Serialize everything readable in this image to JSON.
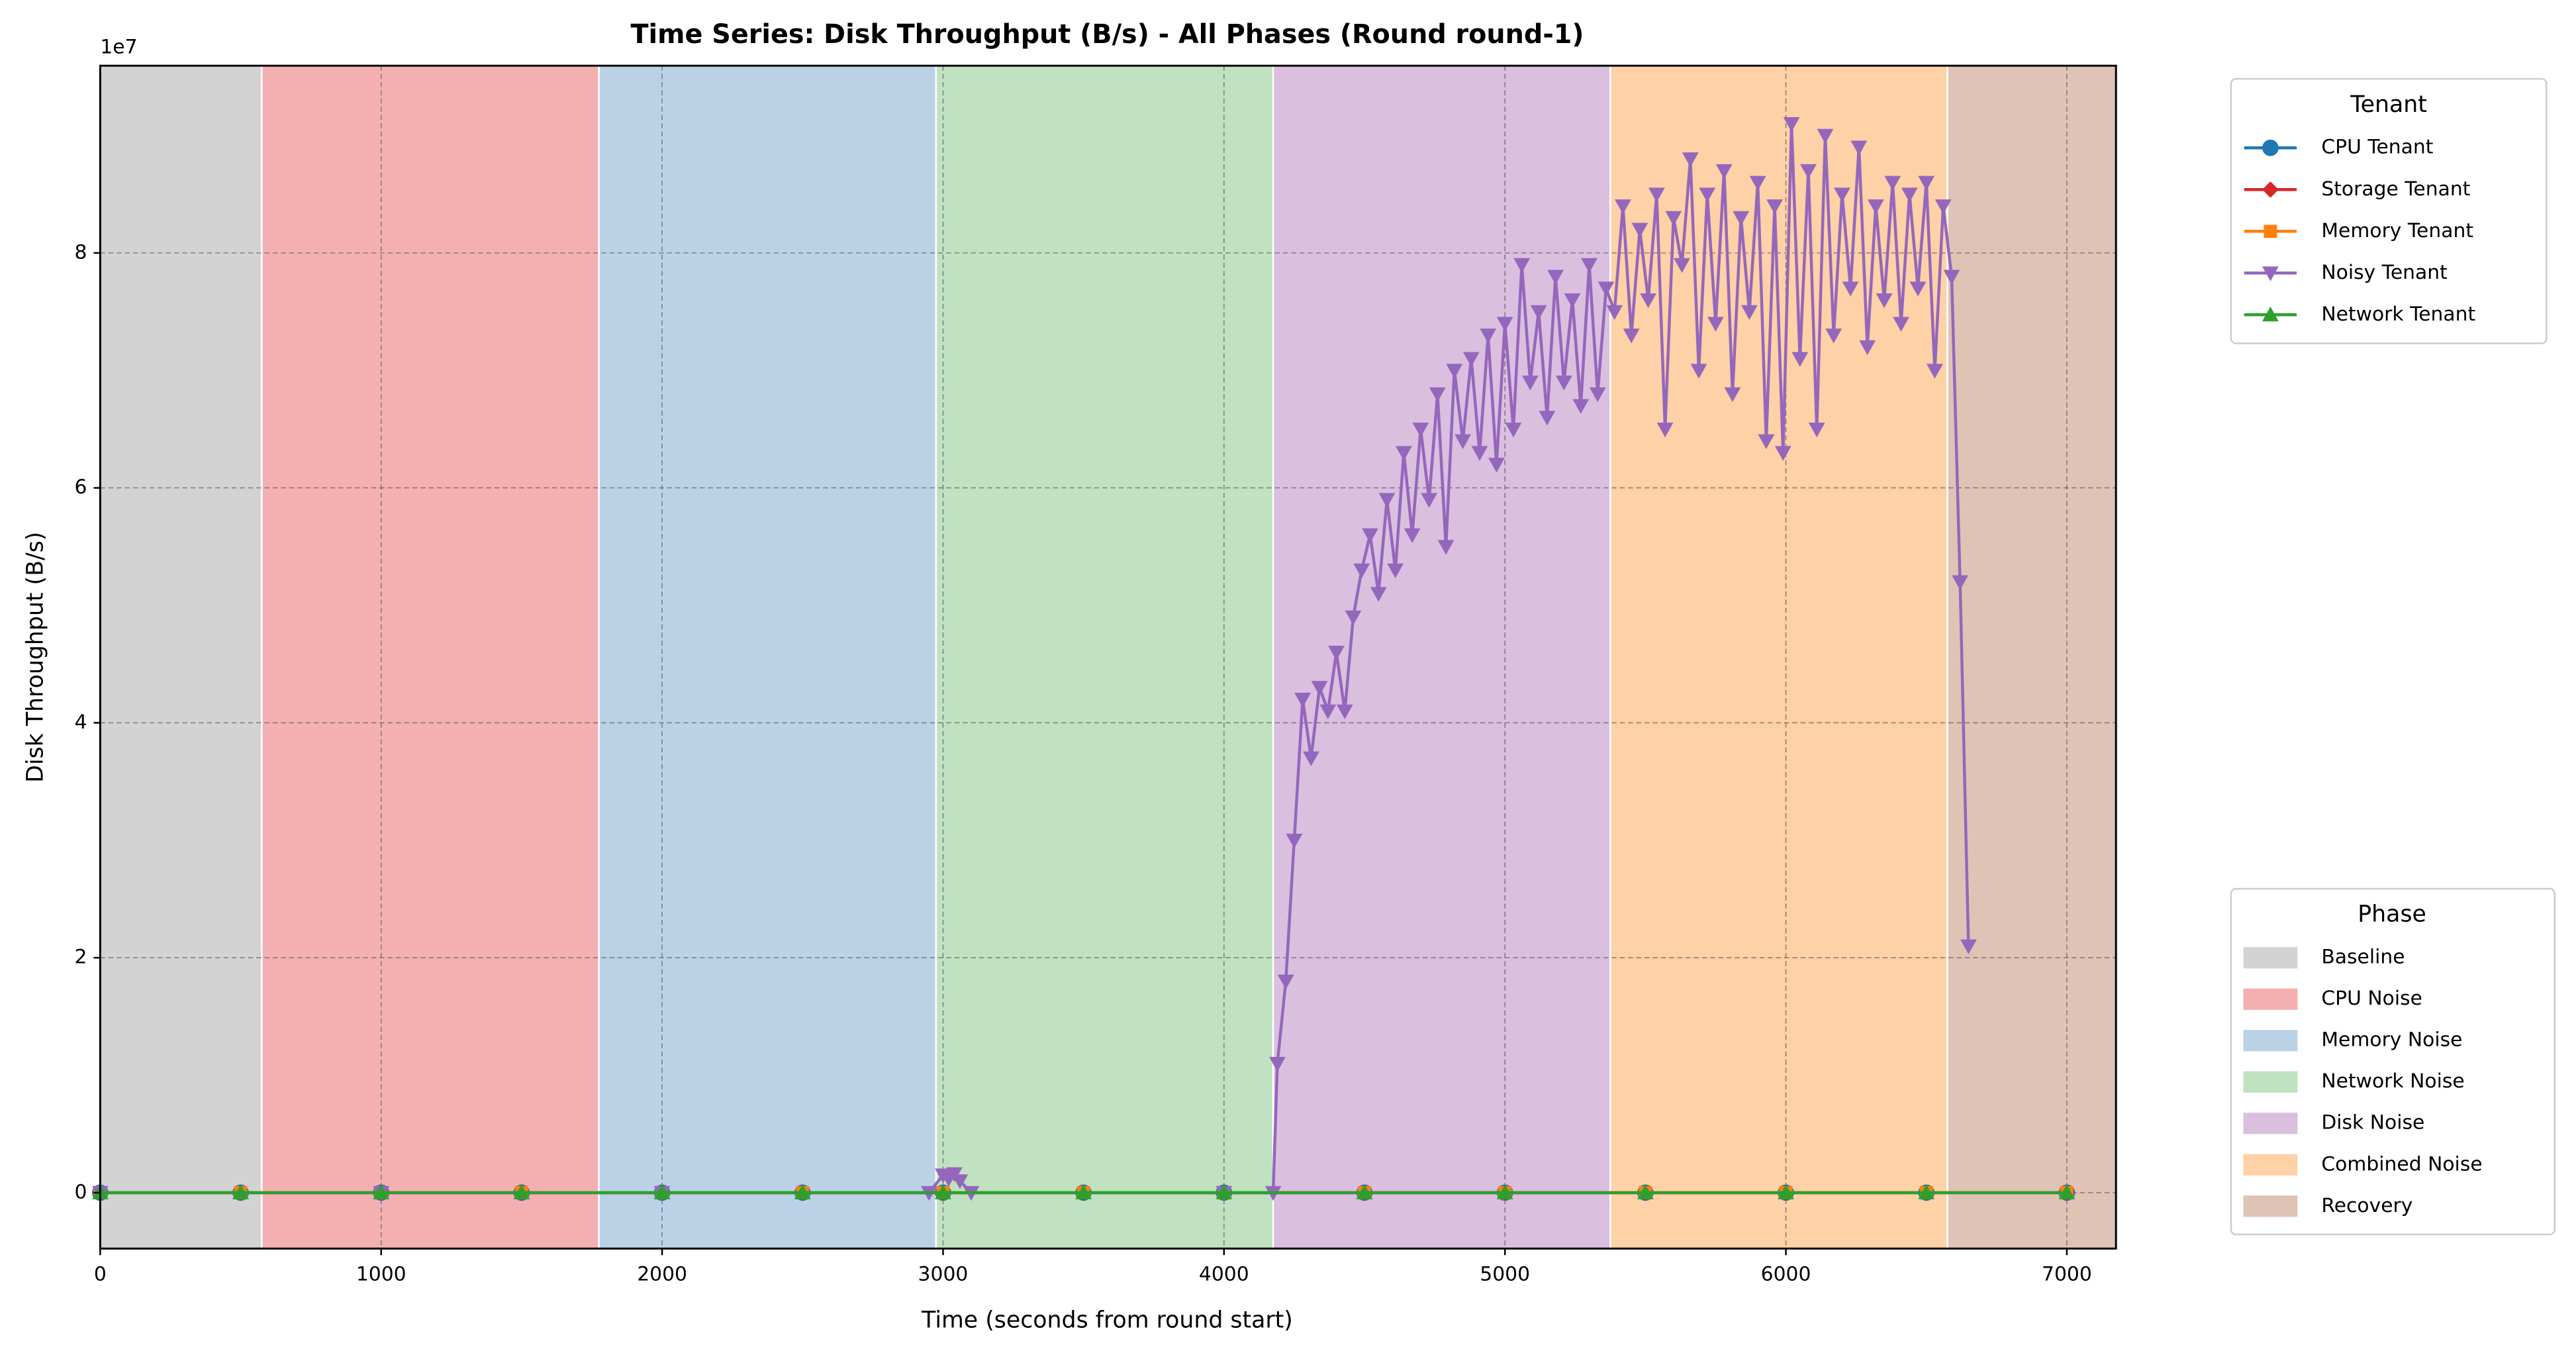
{
  "chart_data": {
    "type": "line",
    "title": "Time Series: Disk Throughput (B/s) - All Phases (Round round-1)",
    "x_label": "Time (seconds from round start)",
    "y_label": "Disk Throughput (B/s)",
    "y_offset_text": "1e7",
    "xlim": [
      0,
      7175
    ],
    "ylim": [
      -4760000,
      95940000
    ],
    "xticks": [
      0,
      1000,
      2000,
      3000,
      4000,
      5000,
      6000,
      7000
    ],
    "yticks": [
      {
        "value": 0,
        "label": "0"
      },
      {
        "value": 20000000,
        "label": "2"
      },
      {
        "value": 40000000,
        "label": "4"
      },
      {
        "value": 60000000,
        "label": "6"
      },
      {
        "value": 80000000,
        "label": "8"
      }
    ],
    "grid": true,
    "legend_title": "Tenant",
    "legend_position": "upper right outside",
    "phase_legend_title": "Phase",
    "phases": [
      {
        "name": "Baseline",
        "start": 0,
        "end": 575,
        "color": "#d3d3d3"
      },
      {
        "name": "CPU Noise",
        "start": 575,
        "end": 1775,
        "color": "#f4b0b1"
      },
      {
        "name": "Memory Noise",
        "start": 1775,
        "end": 2975,
        "color": "#bbd2e6"
      },
      {
        "name": "Network Noise",
        "start": 2975,
        "end": 4175,
        "color": "#c0e2c0"
      },
      {
        "name": "Disk Noise",
        "start": 4175,
        "end": 5375,
        "color": "#dabfdf"
      },
      {
        "name": "Combined Noise",
        "start": 5375,
        "end": 6575,
        "color": "#fed1a6"
      },
      {
        "name": "Recovery",
        "start": 6575,
        "end": 7175,
        "color": "#dfc3b5"
      }
    ],
    "series": [
      {
        "name": "CPU Tenant",
        "color": "#1f77b4",
        "marker": "circle",
        "x": [
          0,
          500,
          1000,
          1500,
          2000,
          2500,
          3000,
          3500,
          4000,
          4500,
          5000,
          5500,
          6000,
          6500,
          7000
        ],
        "values": [
          0,
          0,
          0,
          0,
          0,
          0,
          0,
          0,
          0,
          0,
          0,
          0,
          0,
          0,
          0
        ]
      },
      {
        "name": "Storage Tenant",
        "color": "#d62728",
        "marker": "diamond",
        "x": [
          0,
          500,
          1000,
          1500,
          2000,
          2500,
          3000,
          3500,
          4000,
          4500,
          5000,
          5500,
          6000,
          6500,
          7000
        ],
        "values": [
          0,
          0,
          0,
          0,
          0,
          0,
          0,
          0,
          0,
          0,
          0,
          0,
          0,
          0,
          0
        ]
      },
      {
        "name": "Memory Tenant",
        "color": "#ff7f0e",
        "marker": "square",
        "x": [
          0,
          500,
          1000,
          1500,
          2000,
          2500,
          3000,
          3500,
          4000,
          4500,
          5000,
          5500,
          6000,
          6500,
          7000
        ],
        "values": [
          0,
          0,
          0,
          0,
          0,
          0,
          0,
          0,
          0,
          0,
          0,
          0,
          0,
          0,
          0
        ]
      },
      {
        "name": "Noisy Tenant",
        "color": "#9467bd",
        "marker": "triangle-down",
        "x": [
          0,
          1000,
          2000,
          2950,
          3000,
          3020,
          3040,
          3060,
          3100,
          4000,
          4175,
          4190,
          4220,
          4250,
          4280,
          4310,
          4340,
          4370,
          4400,
          4430,
          4460,
          4490,
          4520,
          4550,
          4580,
          4610,
          4640,
          4670,
          4700,
          4730,
          4760,
          4790,
          4820,
          4850,
          4880,
          4910,
          4940,
          4970,
          5000,
          5030,
          5060,
          5090,
          5120,
          5150,
          5180,
          5210,
          5240,
          5270,
          5300,
          5330,
          5360,
          5390,
          5420,
          5450,
          5480,
          5510,
          5540,
          5570,
          5600,
          5630,
          5660,
          5690,
          5720,
          5750,
          5780,
          5810,
          5840,
          5870,
          5900,
          5930,
          5960,
          5990,
          6020,
          6050,
          6080,
          6110,
          6140,
          6170,
          6200,
          6230,
          6260,
          6290,
          6320,
          6350,
          6380,
          6410,
          6440,
          6470,
          6500,
          6530,
          6560,
          6590,
          6620,
          6650
        ],
        "values": [
          0,
          0,
          0,
          0,
          1500000,
          1200000,
          1600000,
          1000000,
          0,
          0,
          0,
          11000000,
          18000000,
          30000000,
          42000000,
          37000000,
          43000000,
          41000000,
          46000000,
          41000000,
          49000000,
          53000000,
          56000000,
          51000000,
          59000000,
          53000000,
          63000000,
          56000000,
          65000000,
          59000000,
          68000000,
          55000000,
          70000000,
          64000000,
          71000000,
          63000000,
          73000000,
          62000000,
          74000000,
          65000000,
          79000000,
          69000000,
          75000000,
          66000000,
          78000000,
          69000000,
          76000000,
          67000000,
          79000000,
          68000000,
          77000000,
          75000000,
          84000000,
          73000000,
          82000000,
          76000000,
          85000000,
          65000000,
          83000000,
          79000000,
          88000000,
          70000000,
          85000000,
          74000000,
          87000000,
          68000000,
          83000000,
          75000000,
          86000000,
          64000000,
          84000000,
          63000000,
          91000000,
          71000000,
          87000000,
          65000000,
          90000000,
          73000000,
          85000000,
          77000000,
          89000000,
          72000000,
          84000000,
          76000000,
          86000000,
          74000000,
          85000000,
          77000000,
          86000000,
          70000000,
          84000000,
          78000000,
          52000000,
          21000000
        ]
      },
      {
        "name": "Network Tenant",
        "color": "#2ca02c",
        "marker": "triangle-up",
        "x": [
          0,
          500,
          1000,
          1500,
          2000,
          2500,
          3000,
          3500,
          4000,
          4500,
          5000,
          5500,
          6000,
          6500,
          7000
        ],
        "values": [
          0,
          0,
          0,
          0,
          0,
          0,
          0,
          0,
          0,
          0,
          0,
          0,
          0,
          0,
          0
        ]
      }
    ]
  }
}
